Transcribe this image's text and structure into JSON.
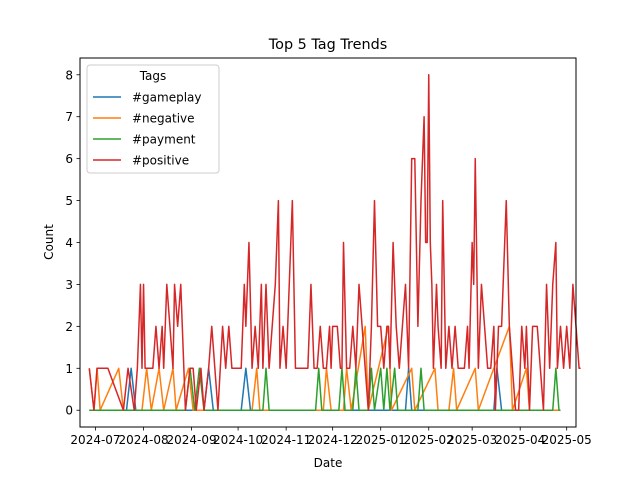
{
  "chart_data": {
    "type": "line",
    "title": "Top 5 Tag Trends",
    "xlabel": "Date",
    "ylabel": "Count",
    "xlim": [
      "2024-06-21",
      "2025-05-07"
    ],
    "ylim": [
      -0.4,
      8.4
    ],
    "x_ticks": [
      "2024-07",
      "2024-08",
      "2024-09",
      "2024-10",
      "2024-11",
      "2024-12",
      "2025-01",
      "2025-02",
      "2025-03",
      "2025-04",
      "2025-05"
    ],
    "x_tick_dates": [
      "2024-07-01",
      "2024-08-01",
      "2024-09-01",
      "2024-10-01",
      "2024-11-01",
      "2024-12-01",
      "2025-01-01",
      "2025-02-01",
      "2025-03-01",
      "2025-04-01",
      "2025-05-01"
    ],
    "y_ticks": [
      0,
      1,
      2,
      3,
      4,
      5,
      6,
      7,
      8
    ],
    "grid": false,
    "legend": {
      "title": "Tags",
      "placement": "upper-left"
    },
    "series": [
      {
        "name": "#gameplay",
        "color": "#1f77b4",
        "points": [
          [
            "2024-06-27",
            0
          ],
          [
            "2024-07-21",
            0
          ],
          [
            "2024-07-24",
            1
          ],
          [
            "2024-07-27",
            0
          ],
          [
            "2024-09-09",
            0
          ],
          [
            "2024-09-12",
            1
          ],
          [
            "2024-09-15",
            0
          ],
          [
            "2024-10-03",
            0
          ],
          [
            "2024-10-06",
            1
          ],
          [
            "2024-10-09",
            0
          ],
          [
            "2025-01-17",
            0
          ],
          [
            "2025-01-19",
            1
          ],
          [
            "2025-01-21",
            0
          ],
          [
            "2025-03-15",
            0
          ],
          [
            "2025-03-17",
            1
          ],
          [
            "2025-03-20",
            0
          ],
          [
            "2025-04-27",
            0
          ]
        ]
      },
      {
        "name": "#negative",
        "color": "#ff7f0e",
        "points": [
          [
            "2024-06-27",
            1
          ],
          [
            "2024-06-30",
            0
          ],
          [
            "2024-07-02",
            1
          ],
          [
            "2024-07-04",
            0
          ],
          [
            "2024-07-16",
            1
          ],
          [
            "2024-07-19",
            0
          ],
          [
            "2024-07-31",
            0
          ],
          [
            "2024-08-03",
            1
          ],
          [
            "2024-08-06",
            0
          ],
          [
            "2024-08-11",
            1
          ],
          [
            "2024-08-14",
            0
          ],
          [
            "2024-08-20",
            1
          ],
          [
            "2024-08-22",
            0
          ],
          [
            "2024-08-30",
            1
          ],
          [
            "2024-09-02",
            0
          ],
          [
            "2024-10-10",
            0
          ],
          [
            "2024-10-13",
            1
          ],
          [
            "2024-10-15",
            0
          ],
          [
            "2024-11-25",
            0
          ],
          [
            "2024-11-27",
            1
          ],
          [
            "2024-11-30",
            0
          ],
          [
            "2024-12-08",
            0
          ],
          [
            "2024-12-10",
            1
          ],
          [
            "2024-12-13",
            0
          ],
          [
            "2024-12-22",
            2
          ],
          [
            "2024-12-24",
            0
          ],
          [
            "2025-01-06",
            2
          ],
          [
            "2025-01-08",
            0
          ],
          [
            "2025-01-21",
            1
          ],
          [
            "2025-01-23",
            0
          ],
          [
            "2025-02-05",
            1
          ],
          [
            "2025-02-07",
            0
          ],
          [
            "2025-02-14",
            0
          ],
          [
            "2025-02-17",
            1
          ],
          [
            "2025-02-19",
            0
          ],
          [
            "2025-03-03",
            1
          ],
          [
            "2025-03-05",
            0
          ],
          [
            "2025-03-25",
            2
          ],
          [
            "2025-03-27",
            0
          ],
          [
            "2025-04-05",
            1
          ],
          [
            "2025-04-07",
            0
          ],
          [
            "2025-04-27",
            0
          ]
        ]
      },
      {
        "name": "#payment",
        "color": "#2ca02c",
        "points": [
          [
            "2024-06-27",
            0
          ],
          [
            "2024-08-28",
            0
          ],
          [
            "2024-08-31",
            1
          ],
          [
            "2024-09-03",
            0
          ],
          [
            "2024-09-06",
            1
          ],
          [
            "2024-09-09",
            0
          ],
          [
            "2024-10-17",
            0
          ],
          [
            "2024-10-19",
            1
          ],
          [
            "2024-10-21",
            0
          ],
          [
            "2024-11-20",
            0
          ],
          [
            "2024-11-22",
            1
          ],
          [
            "2024-11-24",
            0
          ],
          [
            "2024-12-05",
            0
          ],
          [
            "2024-12-07",
            1
          ],
          [
            "2024-12-09",
            0
          ],
          [
            "2024-12-14",
            0
          ],
          [
            "2024-12-16",
            1
          ],
          [
            "2024-12-18",
            0
          ],
          [
            "2024-12-24",
            0
          ],
          [
            "2024-12-26",
            1
          ],
          [
            "2024-12-28",
            0
          ],
          [
            "2025-01-01",
            1
          ],
          [
            "2025-01-03",
            0
          ],
          [
            "2025-01-05",
            1
          ],
          [
            "2025-01-07",
            0
          ],
          [
            "2025-01-10",
            1
          ],
          [
            "2025-01-12",
            0
          ],
          [
            "2025-01-25",
            0
          ],
          [
            "2025-01-27",
            1
          ],
          [
            "2025-01-29",
            0
          ],
          [
            "2025-04-22",
            0
          ],
          [
            "2025-04-24",
            1
          ],
          [
            "2025-04-26",
            0
          ],
          [
            "2025-04-27",
            0
          ]
        ]
      },
      {
        "name": "#positive",
        "color": "#d62728",
        "points": [
          [
            "2024-06-27",
            1
          ],
          [
            "2024-06-30",
            0
          ],
          [
            "2024-07-02",
            1
          ],
          [
            "2024-07-09",
            1
          ],
          [
            "2024-07-19",
            0
          ],
          [
            "2024-07-22",
            1
          ],
          [
            "2024-07-26",
            0
          ],
          [
            "2024-07-28",
            1
          ],
          [
            "2024-07-30",
            3
          ],
          [
            "2024-07-31",
            1
          ],
          [
            "2024-08-01",
            3
          ],
          [
            "2024-08-02",
            1
          ],
          [
            "2024-08-07",
            1
          ],
          [
            "2024-08-09",
            2
          ],
          [
            "2024-08-11",
            1
          ],
          [
            "2024-08-13",
            2
          ],
          [
            "2024-08-14",
            1
          ],
          [
            "2024-08-16",
            3
          ],
          [
            "2024-08-18",
            2
          ],
          [
            "2024-08-20",
            1
          ],
          [
            "2024-08-21",
            3
          ],
          [
            "2024-08-23",
            2
          ],
          [
            "2024-08-25",
            3
          ],
          [
            "2024-08-26",
            2
          ],
          [
            "2024-08-28",
            0
          ],
          [
            "2024-08-31",
            1
          ],
          [
            "2024-09-02",
            1
          ],
          [
            "2024-09-04",
            0
          ],
          [
            "2024-09-07",
            1
          ],
          [
            "2024-09-09",
            0
          ],
          [
            "2024-09-12",
            1
          ],
          [
            "2024-09-14",
            2
          ],
          [
            "2024-09-16",
            1
          ],
          [
            "2024-09-18",
            0
          ],
          [
            "2024-09-21",
            2
          ],
          [
            "2024-09-23",
            1
          ],
          [
            "2024-09-25",
            2
          ],
          [
            "2024-09-27",
            1
          ],
          [
            "2024-10-03",
            1
          ],
          [
            "2024-10-05",
            3
          ],
          [
            "2024-10-06",
            2
          ],
          [
            "2024-10-08",
            4
          ],
          [
            "2024-10-10",
            1
          ],
          [
            "2024-10-12",
            2
          ],
          [
            "2024-10-14",
            1
          ],
          [
            "2024-10-16",
            3
          ],
          [
            "2024-10-17",
            1
          ],
          [
            "2024-10-19",
            3
          ],
          [
            "2024-10-21",
            1
          ],
          [
            "2024-10-23",
            2
          ],
          [
            "2024-10-25",
            3
          ],
          [
            "2024-10-27",
            5
          ],
          [
            "2024-10-28",
            1
          ],
          [
            "2024-10-30",
            2
          ],
          [
            "2024-11-01",
            1
          ],
          [
            "2024-11-03",
            3
          ],
          [
            "2024-11-05",
            5
          ],
          [
            "2024-11-07",
            1
          ],
          [
            "2024-11-09",
            1
          ],
          [
            "2024-11-11",
            1
          ],
          [
            "2024-11-13",
            1
          ],
          [
            "2024-11-15",
            1
          ],
          [
            "2024-11-17",
            3
          ],
          [
            "2024-11-19",
            1
          ],
          [
            "2024-11-21",
            1
          ],
          [
            "2024-11-23",
            2
          ],
          [
            "2024-11-25",
            1
          ],
          [
            "2024-11-27",
            1
          ],
          [
            "2024-11-29",
            2
          ],
          [
            "2024-11-30",
            1
          ],
          [
            "2024-12-01",
            2
          ],
          [
            "2024-12-04",
            2
          ],
          [
            "2024-12-06",
            1
          ],
          [
            "2024-12-07",
            1
          ],
          [
            "2024-12-08",
            4
          ],
          [
            "2024-12-10",
            1
          ],
          [
            "2024-12-12",
            1
          ],
          [
            "2024-12-14",
            2
          ],
          [
            "2024-12-16",
            1
          ],
          [
            "2024-12-18",
            3
          ],
          [
            "2024-12-20",
            2
          ],
          [
            "2024-12-22",
            1
          ],
          [
            "2024-12-24",
            0
          ],
          [
            "2024-12-26",
            2
          ],
          [
            "2024-12-28",
            5
          ],
          [
            "2024-12-30",
            2
          ],
          [
            "2025-01-01",
            2
          ],
          [
            "2025-01-03",
            1
          ],
          [
            "2025-01-05",
            2
          ],
          [
            "2025-01-06",
            2
          ],
          [
            "2025-01-07",
            1
          ],
          [
            "2025-01-09",
            4
          ],
          [
            "2025-01-11",
            2
          ],
          [
            "2025-01-13",
            1
          ],
          [
            "2025-01-15",
            2
          ],
          [
            "2025-01-17",
            3
          ],
          [
            "2025-01-19",
            1
          ],
          [
            "2025-01-21",
            6
          ],
          [
            "2025-01-22",
            6
          ],
          [
            "2025-01-23",
            6
          ],
          [
            "2025-01-24",
            4
          ],
          [
            "2025-01-25",
            2
          ],
          [
            "2025-01-27",
            5
          ],
          [
            "2025-01-29",
            7
          ],
          [
            "2025-01-30",
            4
          ],
          [
            "2025-01-31",
            4
          ],
          [
            "2025-02-01",
            8
          ],
          [
            "2025-02-02",
            4
          ],
          [
            "2025-02-03",
            3
          ],
          [
            "2025-02-04",
            1
          ],
          [
            "2025-02-06",
            3
          ],
          [
            "2025-02-07",
            2
          ],
          [
            "2025-02-09",
            1
          ],
          [
            "2025-02-10",
            5
          ],
          [
            "2025-02-12",
            1
          ],
          [
            "2025-02-14",
            2
          ],
          [
            "2025-02-16",
            1
          ],
          [
            "2025-02-18",
            2
          ],
          [
            "2025-02-20",
            1
          ],
          [
            "2025-02-22",
            1
          ],
          [
            "2025-02-24",
            1
          ],
          [
            "2025-02-26",
            2
          ],
          [
            "2025-02-27",
            1
          ],
          [
            "2025-03-01",
            4
          ],
          [
            "2025-03-02",
            3
          ],
          [
            "2025-03-03",
            6
          ],
          [
            "2025-03-05",
            1
          ],
          [
            "2025-03-07",
            3
          ],
          [
            "2025-03-09",
            2
          ],
          [
            "2025-03-11",
            1
          ],
          [
            "2025-03-13",
            1
          ],
          [
            "2025-03-15",
            2
          ],
          [
            "2025-03-16",
            0
          ],
          [
            "2025-03-18",
            2
          ],
          [
            "2025-03-20",
            2
          ],
          [
            "2025-03-23",
            5
          ],
          [
            "2025-03-25",
            2
          ],
          [
            "2025-03-27",
            1
          ],
          [
            "2025-03-29",
            0
          ],
          [
            "2025-03-31",
            0
          ],
          [
            "2025-04-02",
            2
          ],
          [
            "2025-04-04",
            1
          ],
          [
            "2025-04-05",
            2
          ],
          [
            "2025-04-06",
            1
          ],
          [
            "2025-04-07",
            0
          ],
          [
            "2025-04-09",
            2
          ],
          [
            "2025-04-12",
            2
          ],
          [
            "2025-04-14",
            1
          ],
          [
            "2025-04-16",
            0
          ],
          [
            "2025-04-18",
            3
          ],
          [
            "2025-04-20",
            1
          ],
          [
            "2025-04-22",
            3
          ],
          [
            "2025-04-24",
            4
          ],
          [
            "2025-04-25",
            1
          ],
          [
            "2025-04-27",
            2
          ],
          [
            "2025-04-29",
            1
          ],
          [
            "2025-05-01",
            2
          ],
          [
            "2025-05-03",
            1
          ],
          [
            "2025-05-05",
            3
          ],
          [
            "2025-05-07",
            2
          ],
          [
            "2025-05-09",
            1
          ],
          [
            "2025-05-10",
            1
          ]
        ]
      }
    ]
  }
}
